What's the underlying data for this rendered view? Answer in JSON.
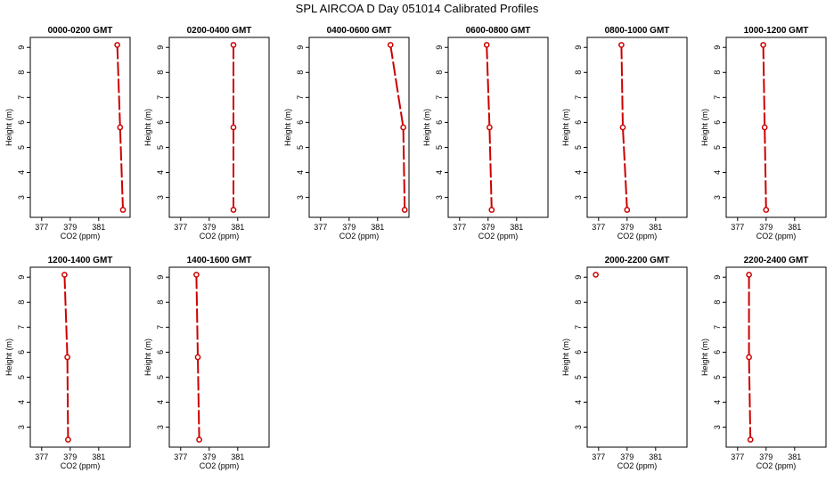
{
  "title": "SPL AIRCOA D  Day 051014  Calibrated Profiles",
  "chart_data": [
    {
      "type": "line",
      "title": "0000-0200 GMT",
      "xlabel": "CO2 (ppm)",
      "ylabel": "Height (m)",
      "xlim": [
        376.2,
        383.2
      ],
      "ylim": [
        2.2,
        9.4
      ],
      "xticks": [
        377,
        379,
        381
      ],
      "yticks": [
        3,
        4,
        5,
        6,
        7,
        8,
        9
      ],
      "series": [
        {
          "x": [
            382.3,
            382.5,
            382.7
          ],
          "y": [
            9.1,
            5.8,
            2.5
          ],
          "color": "#cc0000"
        }
      ]
    },
    {
      "type": "line",
      "title": "0200-0400 GMT",
      "xlabel": "CO2 (ppm)",
      "ylabel": "Height (m)",
      "xlim": [
        376.2,
        383.2
      ],
      "ylim": [
        2.2,
        9.4
      ],
      "xticks": [
        377,
        379,
        381
      ],
      "yticks": [
        3,
        4,
        5,
        6,
        7,
        8,
        9
      ],
      "series": [
        {
          "x": [
            380.7,
            380.7,
            380.7
          ],
          "y": [
            9.1,
            5.8,
            2.5
          ],
          "color": "#cc0000"
        }
      ]
    },
    {
      "type": "line",
      "title": "0400-0600 GMT",
      "xlabel": "CO2 (ppm)",
      "ylabel": "Height (m)",
      "xlim": [
        376.2,
        383.2
      ],
      "ylim": [
        2.2,
        9.4
      ],
      "xticks": [
        377,
        379,
        381
      ],
      "yticks": [
        3,
        4,
        5,
        6,
        7,
        8,
        9
      ],
      "series": [
        {
          "x": [
            381.9,
            382.8,
            382.9
          ],
          "y": [
            9.1,
            5.8,
            2.5
          ],
          "color": "#cc0000"
        }
      ]
    },
    {
      "type": "line",
      "title": "0600-0800 GMT",
      "xlabel": "CO2 (ppm)",
      "ylabel": "Height (m)",
      "xlim": [
        376.2,
        383.2
      ],
      "ylim": [
        2.2,
        9.4
      ],
      "xticks": [
        377,
        379,
        381
      ],
      "yticks": [
        3,
        4,
        5,
        6,
        7,
        8,
        9
      ],
      "series": [
        {
          "x": [
            378.9,
            379.1,
            379.25
          ],
          "y": [
            9.1,
            5.8,
            2.5
          ],
          "color": "#cc0000"
        }
      ]
    },
    {
      "type": "line",
      "title": "0800-1000 GMT",
      "xlabel": "CO2 (ppm)",
      "ylabel": "Height (m)",
      "xlim": [
        376.2,
        383.2
      ],
      "ylim": [
        2.2,
        9.4
      ],
      "xticks": [
        377,
        379,
        381
      ],
      "yticks": [
        3,
        4,
        5,
        6,
        7,
        8,
        9
      ],
      "series": [
        {
          "x": [
            378.6,
            378.7,
            379.0
          ],
          "y": [
            9.1,
            5.8,
            2.5
          ],
          "color": "#cc0000"
        }
      ]
    },
    {
      "type": "line",
      "title": "1000-1200 GMT",
      "xlabel": "CO2 (ppm)",
      "ylabel": "Height (m)",
      "xlim": [
        376.2,
        383.2
      ],
      "ylim": [
        2.2,
        9.4
      ],
      "xticks": [
        377,
        379,
        381
      ],
      "yticks": [
        3,
        4,
        5,
        6,
        7,
        8,
        9
      ],
      "series": [
        {
          "x": [
            378.8,
            378.9,
            379.0
          ],
          "y": [
            9.1,
            5.8,
            2.5
          ],
          "color": "#cc0000"
        }
      ]
    },
    {
      "type": "line",
      "title": "1200-1400 GMT",
      "xlabel": "CO2 (ppm)",
      "ylabel": "Height (m)",
      "xlim": [
        376.2,
        383.2
      ],
      "ylim": [
        2.2,
        9.4
      ],
      "xticks": [
        377,
        379,
        381
      ],
      "yticks": [
        3,
        4,
        5,
        6,
        7,
        8,
        9
      ],
      "series": [
        {
          "x": [
            378.6,
            378.8,
            378.85
          ],
          "y": [
            9.1,
            5.8,
            2.5
          ],
          "color": "#cc0000"
        }
      ]
    },
    {
      "type": "line",
      "title": "1400-1600 GMT",
      "xlabel": "CO2 (ppm)",
      "ylabel": "Height (m)",
      "xlim": [
        376.2,
        383.2
      ],
      "ylim": [
        2.2,
        9.4
      ],
      "xticks": [
        377,
        379,
        381
      ],
      "yticks": [
        3,
        4,
        5,
        6,
        7,
        8,
        9
      ],
      "series": [
        {
          "x": [
            378.1,
            378.2,
            378.3
          ],
          "y": [
            9.1,
            5.8,
            2.5
          ],
          "color": "#cc0000"
        }
      ]
    },
    {
      "type": "scatter",
      "title": "2000-2200 GMT",
      "xlabel": "CO2 (ppm)",
      "ylabel": "Height (m)",
      "xlim": [
        376.2,
        383.2
      ],
      "ylim": [
        2.2,
        9.4
      ],
      "xticks": [
        377,
        379,
        381
      ],
      "yticks": [
        3,
        4,
        5,
        6,
        7,
        8,
        9
      ],
      "series": [
        {
          "x": [
            376.8
          ],
          "y": [
            9.1
          ],
          "color": "#cc0000"
        }
      ]
    },
    {
      "type": "line",
      "title": "2200-2400 GMT",
      "xlabel": "CO2 (ppm)",
      "ylabel": "Height (m)",
      "xlim": [
        376.2,
        383.2
      ],
      "ylim": [
        2.2,
        9.4
      ],
      "xticks": [
        377,
        379,
        381
      ],
      "yticks": [
        3,
        4,
        5,
        6,
        7,
        8,
        9
      ],
      "series": [
        {
          "x": [
            377.8,
            377.8,
            377.9
          ],
          "y": [
            9.1,
            5.8,
            2.5
          ],
          "color": "#cc0000"
        }
      ]
    }
  ]
}
